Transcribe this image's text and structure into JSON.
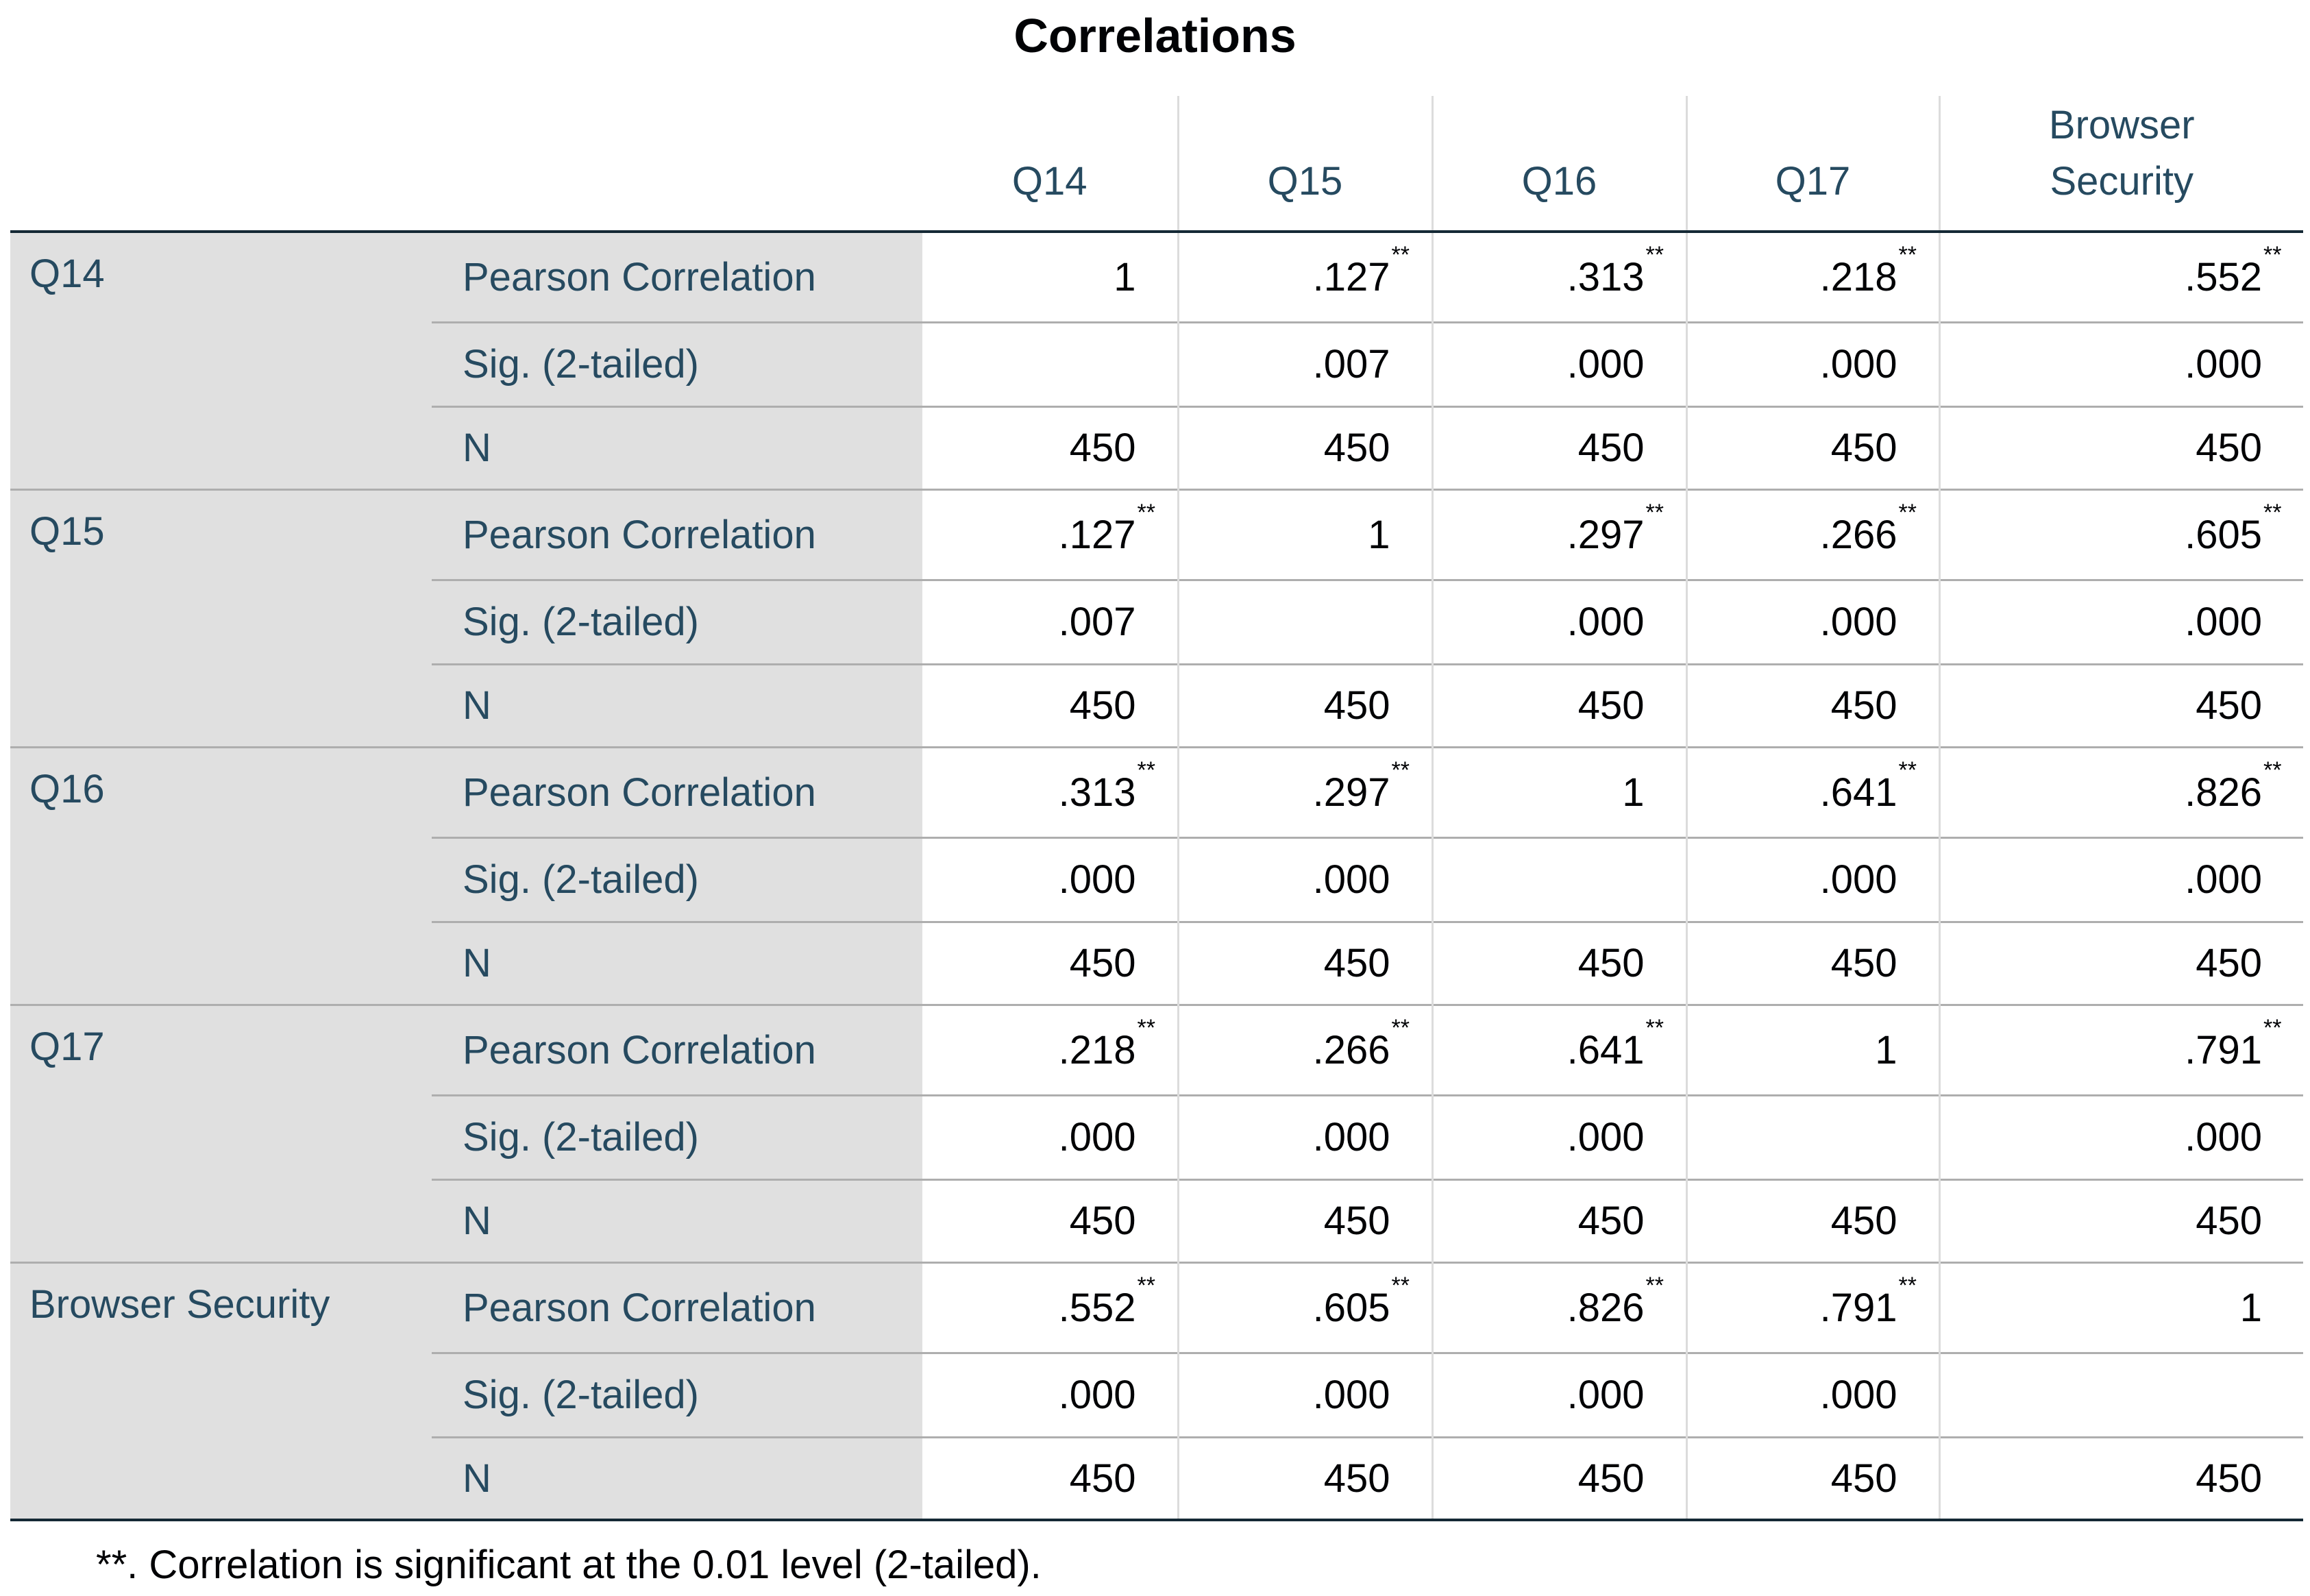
{
  "title": "Correlations",
  "columns": [
    "Q14",
    "Q15",
    "Q16",
    "Q17",
    "Browser Security"
  ],
  "groups": [
    {
      "label": "Q14",
      "rows": [
        {
          "stat": "Pearson Correlation",
          "cells": [
            {
              "text": "1"
            },
            {
              "text": ".127",
              "sup": "**"
            },
            {
              "text": ".313",
              "sup": "**"
            },
            {
              "text": ".218",
              "sup": "**"
            },
            {
              "text": ".552",
              "sup": "**"
            }
          ]
        },
        {
          "stat": "Sig. (2-tailed)",
          "cells": [
            null,
            {
              "text": ".007"
            },
            {
              "text": ".000"
            },
            {
              "text": ".000"
            },
            {
              "text": ".000"
            }
          ]
        },
        {
          "stat": "N",
          "cells": [
            {
              "text": "450"
            },
            {
              "text": "450"
            },
            {
              "text": "450"
            },
            {
              "text": "450"
            },
            {
              "text": "450"
            }
          ]
        }
      ]
    },
    {
      "label": "Q15",
      "rows": [
        {
          "stat": "Pearson Correlation",
          "cells": [
            {
              "text": ".127",
              "sup": "**"
            },
            {
              "text": "1"
            },
            {
              "text": ".297",
              "sup": "**"
            },
            {
              "text": ".266",
              "sup": "**"
            },
            {
              "text": ".605",
              "sup": "**"
            }
          ]
        },
        {
          "stat": "Sig. (2-tailed)",
          "cells": [
            {
              "text": ".007"
            },
            null,
            {
              "text": ".000"
            },
            {
              "text": ".000"
            },
            {
              "text": ".000"
            }
          ]
        },
        {
          "stat": "N",
          "cells": [
            {
              "text": "450"
            },
            {
              "text": "450"
            },
            {
              "text": "450"
            },
            {
              "text": "450"
            },
            {
              "text": "450"
            }
          ]
        }
      ]
    },
    {
      "label": "Q16",
      "rows": [
        {
          "stat": "Pearson Correlation",
          "cells": [
            {
              "text": ".313",
              "sup": "**"
            },
            {
              "text": ".297",
              "sup": "**"
            },
            {
              "text": "1"
            },
            {
              "text": ".641",
              "sup": "**"
            },
            {
              "text": ".826",
              "sup": "**"
            }
          ]
        },
        {
          "stat": "Sig. (2-tailed)",
          "cells": [
            {
              "text": ".000"
            },
            {
              "text": ".000"
            },
            null,
            {
              "text": ".000"
            },
            {
              "text": ".000"
            }
          ]
        },
        {
          "stat": "N",
          "cells": [
            {
              "text": "450"
            },
            {
              "text": "450"
            },
            {
              "text": "450"
            },
            {
              "text": "450"
            },
            {
              "text": "450"
            }
          ]
        }
      ]
    },
    {
      "label": "Q17",
      "rows": [
        {
          "stat": "Pearson Correlation",
          "cells": [
            {
              "text": ".218",
              "sup": "**"
            },
            {
              "text": ".266",
              "sup": "**"
            },
            {
              "text": ".641",
              "sup": "**"
            },
            {
              "text": "1"
            },
            {
              "text": ".791",
              "sup": "**"
            }
          ]
        },
        {
          "stat": "Sig. (2-tailed)",
          "cells": [
            {
              "text": ".000"
            },
            {
              "text": ".000"
            },
            {
              "text": ".000"
            },
            null,
            {
              "text": ".000"
            }
          ]
        },
        {
          "stat": "N",
          "cells": [
            {
              "text": "450"
            },
            {
              "text": "450"
            },
            {
              "text": "450"
            },
            {
              "text": "450"
            },
            {
              "text": "450"
            }
          ]
        }
      ]
    },
    {
      "label": "Browser Security",
      "rows": [
        {
          "stat": "Pearson Correlation",
          "cells": [
            {
              "text": ".552",
              "sup": "**"
            },
            {
              "text": ".605",
              "sup": "**"
            },
            {
              "text": ".826",
              "sup": "**"
            },
            {
              "text": ".791",
              "sup": "**"
            },
            {
              "text": "1"
            }
          ]
        },
        {
          "stat": "Sig. (2-tailed)",
          "cells": [
            {
              "text": ".000"
            },
            {
              "text": ".000"
            },
            {
              "text": ".000"
            },
            {
              "text": ".000"
            },
            null
          ]
        },
        {
          "stat": "N",
          "cells": [
            {
              "text": "450"
            },
            {
              "text": "450"
            },
            {
              "text": "450"
            },
            {
              "text": "450"
            },
            {
              "text": "450"
            }
          ]
        }
      ]
    }
  ],
  "footnote": "**. Correlation is significant at the 0.01 level (2-tailed)."
}
